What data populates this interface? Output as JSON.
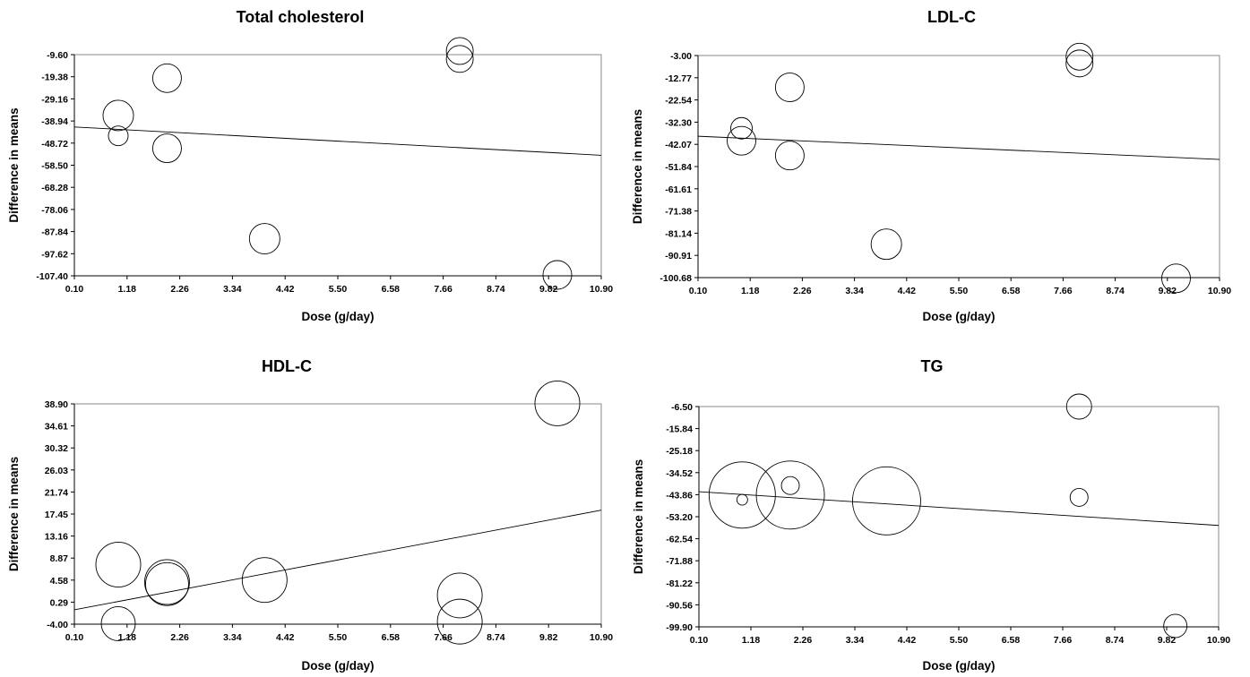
{
  "chart_data": [
    {
      "type": "scatter",
      "title": "Total cholesterol",
      "xlabel": "Dose (g/day)",
      "ylabel": "Difference in means",
      "xlim": [
        0.1,
        10.9
      ],
      "ylim": [
        -107.4,
        -9.6
      ],
      "x_ticks": [
        "0.10",
        "1.18",
        "2.26",
        "3.34",
        "4.42",
        "5.50",
        "6.58",
        "7.66",
        "8.74",
        "9.82",
        "10.90"
      ],
      "y_ticks": [
        "-9.60",
        "-19.38",
        "-29.16",
        "-38.94",
        "-48.72",
        "-58.50",
        "-68.28",
        "-78.06",
        "-87.84",
        "-97.62",
        "-107.40"
      ],
      "points": [
        {
          "x": 1.0,
          "y": -36.5,
          "size": 17
        },
        {
          "x": 1.0,
          "y": -45.5,
          "size": 11
        },
        {
          "x": 2.0,
          "y": -20.0,
          "size": 16
        },
        {
          "x": 2.0,
          "y": -51.0,
          "size": 16
        },
        {
          "x": 4.0,
          "y": -91.0,
          "size": 17
        },
        {
          "x": 8.0,
          "y": -8.0,
          "size": 15
        },
        {
          "x": 8.0,
          "y": -11.5,
          "size": 15
        },
        {
          "x": 10.0,
          "y": -107.0,
          "size": 16
        }
      ],
      "regression": [
        {
          "x": 0.1,
          "y": -41.6
        },
        {
          "x": 10.9,
          "y": -54.1
        }
      ]
    },
    {
      "type": "scatter",
      "title": "LDL-C",
      "xlabel": "Dose (g/day)",
      "ylabel": "Difference in means",
      "xlim": [
        0.1,
        10.9
      ],
      "ylim": [
        -100.68,
        -3.0
      ],
      "x_ticks": [
        "0.10",
        "1.18",
        "2.26",
        "3.34",
        "4.42",
        "5.50",
        "6.58",
        "7.66",
        "8.74",
        "9.82",
        "10.90"
      ],
      "y_ticks": [
        "-3.00",
        "-12.77",
        "-22.54",
        "-32.30",
        "-42.07",
        "-51.84",
        "-61.61",
        "-71.38",
        "-81.14",
        "-90.91",
        "-100.68"
      ],
      "points": [
        {
          "x": 1.0,
          "y": -35.0,
          "size": 12
        },
        {
          "x": 1.0,
          "y": -40.5,
          "size": 16
        },
        {
          "x": 2.0,
          "y": -17.0,
          "size": 16
        },
        {
          "x": 2.0,
          "y": -47.0,
          "size": 16
        },
        {
          "x": 4.0,
          "y": -86.0,
          "size": 17
        },
        {
          "x": 8.0,
          "y": -3.5,
          "size": 15
        },
        {
          "x": 8.0,
          "y": -6.5,
          "size": 15
        },
        {
          "x": 10.0,
          "y": -101.0,
          "size": 16
        }
      ],
      "regression": [
        {
          "x": 0.1,
          "y": -38.5
        },
        {
          "x": 10.9,
          "y": -48.7
        }
      ]
    },
    {
      "type": "scatter",
      "title": "HDL-C",
      "xlabel": "Dose (g/day)",
      "ylabel": "Difference in means",
      "xlim": [
        0.1,
        10.9
      ],
      "ylim": [
        -4.0,
        38.9
      ],
      "x_ticks": [
        "0.10",
        "1.18",
        "2.26",
        "3.34",
        "4.42",
        "5.50",
        "6.58",
        "7.66",
        "8.74",
        "9.82",
        "10.90"
      ],
      "y_ticks": [
        "38.90",
        "34.61",
        "30.32",
        "26.03",
        "21.74",
        "17.45",
        "13.16",
        "8.87",
        "4.58",
        "0.29",
        "-4.00"
      ],
      "points": [
        {
          "x": 1.0,
          "y": 7.6,
          "size": 25
        },
        {
          "x": 1.0,
          "y": -3.9,
          "size": 19
        },
        {
          "x": 2.0,
          "y": 4.2,
          "size": 25
        },
        {
          "x": 2.0,
          "y": 3.8,
          "size": 24
        },
        {
          "x": 4.0,
          "y": 4.6,
          "size": 25
        },
        {
          "x": 8.0,
          "y": 1.6,
          "size": 25
        },
        {
          "x": 8.0,
          "y": -3.5,
          "size": 25
        },
        {
          "x": 10.0,
          "y": 39.0,
          "size": 25
        }
      ],
      "regression": [
        {
          "x": 0.1,
          "y": -1.2
        },
        {
          "x": 10.9,
          "y": 18.2
        }
      ]
    },
    {
      "type": "scatter",
      "title": "TG",
      "xlabel": "Dose (g/day)",
      "ylabel": "Difference in means",
      "xlim": [
        0.1,
        10.9
      ],
      "ylim": [
        -99.9,
        -6.5
      ],
      "x_ticks": [
        "0.10",
        "1.18",
        "2.26",
        "3.34",
        "4.42",
        "5.50",
        "6.58",
        "7.66",
        "8.74",
        "9.82",
        "10.90"
      ],
      "y_ticks": [
        "-6.50",
        "-15.84",
        "-25.18",
        "-34.52",
        "-43.86",
        "-53.20",
        "-62.54",
        "-71.88",
        "-81.22",
        "-90.56",
        "-99.90"
      ],
      "points": [
        {
          "x": 1.0,
          "y": -44.0,
          "size": 37
        },
        {
          "x": 1.0,
          "y": -46.0,
          "size": 6
        },
        {
          "x": 2.0,
          "y": -44.0,
          "size": 38
        },
        {
          "x": 2.0,
          "y": -40.0,
          "size": 10
        },
        {
          "x": 4.0,
          "y": -46.5,
          "size": 38
        },
        {
          "x": 8.0,
          "y": -6.5,
          "size": 14
        },
        {
          "x": 8.0,
          "y": -45.0,
          "size": 10
        },
        {
          "x": 10.0,
          "y": -99.5,
          "size": 13
        }
      ],
      "regression": [
        {
          "x": 0.1,
          "y": -42.6
        },
        {
          "x": 10.9,
          "y": -56.9
        }
      ]
    }
  ]
}
